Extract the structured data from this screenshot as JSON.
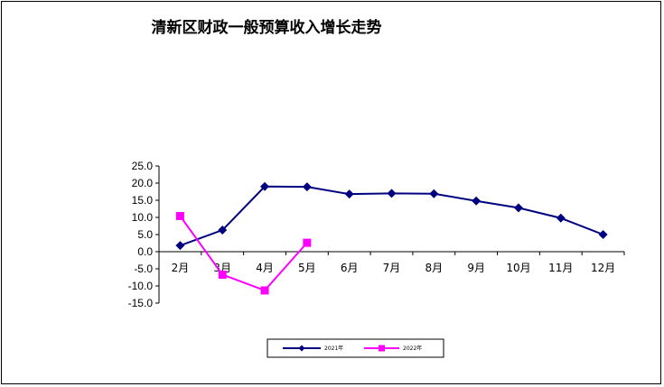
{
  "chart_data": {
    "type": "line",
    "title": "清新区财政一般预算收入增长走势",
    "xlabel": "",
    "ylabel": "",
    "categories": [
      "2月",
      "3月",
      "4月",
      "5月",
      "6月",
      "7月",
      "8月",
      "9月",
      "10月",
      "11月",
      "12月"
    ],
    "ylim": [
      -15,
      25
    ],
    "yticks": [
      "25.0",
      "20.0",
      "15.0",
      "10.0",
      "5.0",
      "0.0",
      "-5.0",
      "-10.0",
      "-15.0"
    ],
    "grid": false,
    "legend_position": "bottom",
    "series": [
      {
        "name": "2021年",
        "color": "#000080",
        "marker": "diamond",
        "values": [
          1.8,
          6.3,
          19.0,
          18.9,
          16.8,
          17.0,
          16.9,
          14.8,
          12.8,
          9.8,
          5.0
        ]
      },
      {
        "name": "2022年",
        "color": "#FF00FF",
        "marker": "square",
        "values": [
          10.4,
          -6.7,
          -11.3,
          2.6,
          null,
          null,
          null,
          null,
          null,
          null,
          null
        ]
      }
    ]
  }
}
